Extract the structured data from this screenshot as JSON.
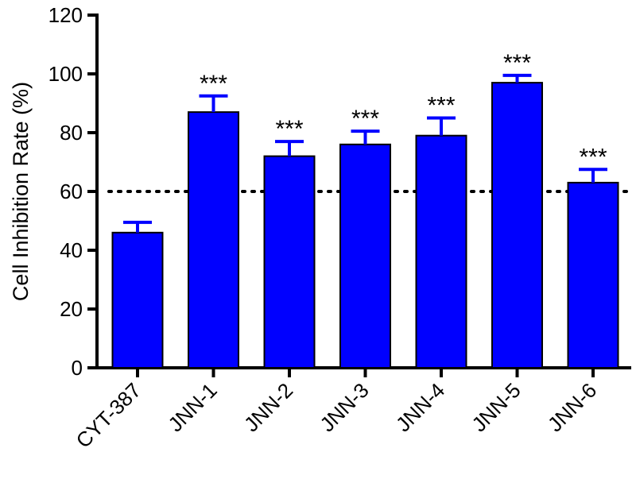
{
  "chart_data": {
    "type": "bar",
    "title": "",
    "ylabel": "Cell Inhibition Rate (%)",
    "xlabel": "",
    "ylim": [
      0,
      120
    ],
    "yticks": [
      0,
      20,
      40,
      60,
      80,
      100,
      120
    ],
    "categories": [
      "CYT-387",
      "JNN-1",
      "JNN-2",
      "JNN-3",
      "JNN-4",
      "JNN-5",
      "JNN-6"
    ],
    "values": [
      46,
      87,
      72,
      76,
      79,
      97,
      63
    ],
    "errors": [
      3.5,
      5.5,
      5,
      4.5,
      6,
      2.5,
      4.5
    ],
    "significance": [
      "",
      "***",
      "***",
      "***",
      "***",
      "***",
      "***"
    ],
    "reference_line": {
      "y": 60,
      "style": "dotted"
    },
    "bar_color": "#0000ff",
    "error_bar_color": "#0000ff",
    "grid": false,
    "legend": "none"
  }
}
